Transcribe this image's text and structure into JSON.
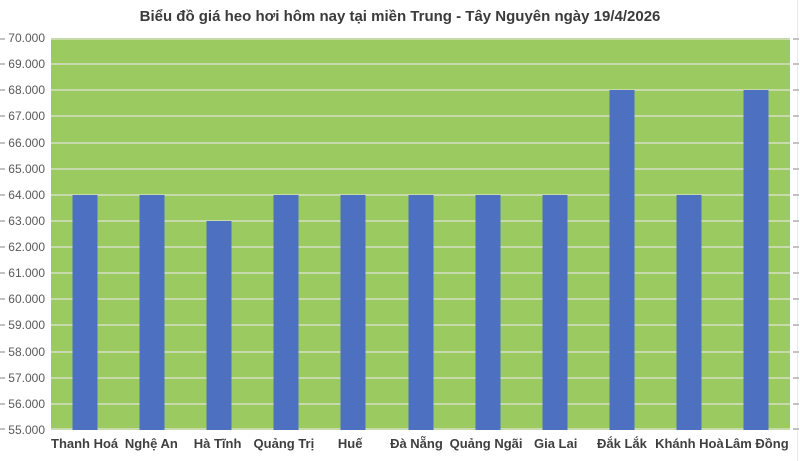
{
  "chart_data": {
    "type": "bar",
    "title": "Biểu đồ giá heo hơi hôm nay tại miền Trung - Tây Nguyên ngày 19/4/2026",
    "categories": [
      "Thanh Hoá",
      "Nghệ An",
      "Hà Tĩnh",
      "Quảng Trị",
      "Huế",
      "Đà Nẵng",
      "Quảng Ngãi",
      "Gia Lai",
      "Đắk Lắk",
      "Khánh Hoà",
      "Lâm Đồng"
    ],
    "values": [
      64000,
      64000,
      63000,
      64000,
      64000,
      64000,
      64000,
      64000,
      68000,
      64000,
      68000
    ],
    "xlabel": "",
    "ylabel": "",
    "ylim": [
      55000,
      70000
    ],
    "ytick_step": 1000,
    "ytick_format": "thousands-dot-separator",
    "grid": true,
    "legend": false,
    "colors": {
      "bar": "#4D71C0",
      "plot_background": "#9BCB60",
      "gridline": "#C6DAAB",
      "title_text": "#3B3B3B",
      "ytick_text": "#595959",
      "xtick_text": "#3F3F3F",
      "page_background": "#FFFFFF",
      "edge_tick": "#C2C2C2"
    }
  }
}
